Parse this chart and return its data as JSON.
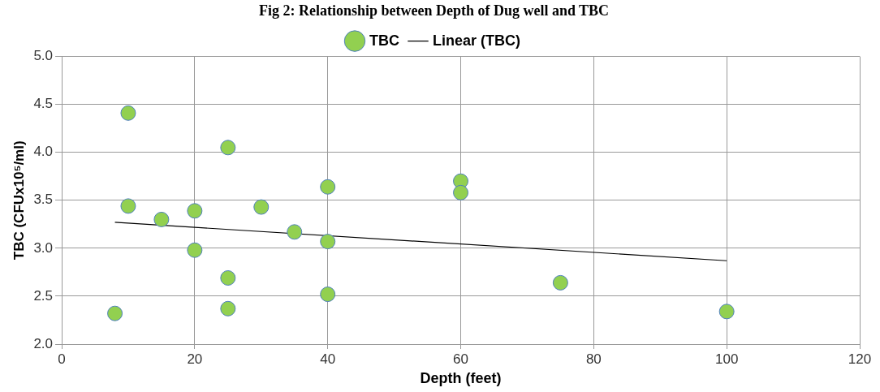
{
  "chart_data": {
    "type": "scatter",
    "title": "Fig 2: Relationship between Depth of Dug well and TBC",
    "xlabel": "Depth (feet)",
    "ylabel": "TBC (CFUx10⁵/ml)",
    "series": [
      {
        "name": "TBC",
        "color": "#92d050",
        "marker": "circle",
        "x": [
          8,
          10,
          10,
          15,
          20,
          20,
          25,
          25,
          25,
          30,
          35,
          40,
          40,
          40,
          60,
          60,
          75,
          100
        ],
        "values": [
          2.32,
          4.41,
          3.44,
          3.3,
          3.39,
          2.98,
          4.05,
          2.69,
          2.37,
          3.43,
          3.17,
          3.64,
          3.07,
          2.52,
          3.7,
          3.58,
          2.64,
          2.34
        ]
      },
      {
        "type": "line",
        "name": "Linear (TBC)",
        "color": "#000000",
        "marker": "none",
        "x": [
          8,
          100
        ],
        "values": [
          3.27,
          2.87
        ]
      }
    ],
    "xlim": [
      0,
      120
    ],
    "xticks": [
      0,
      20,
      40,
      60,
      80,
      100,
      120
    ],
    "ylim": [
      2,
      5
    ],
    "yticks": [
      {
        "value": 2,
        "label": "2.0"
      },
      {
        "value": 2.5,
        "label": "2.5"
      },
      {
        "value": 3,
        "label": "3.0"
      },
      {
        "value": 3.5,
        "label": "3.5"
      },
      {
        "value": 4,
        "label": "4.0"
      },
      {
        "value": 4.5,
        "label": "4.5"
      },
      {
        "value": 5,
        "label": "5.0"
      }
    ],
    "grid": true,
    "legend": "top"
  }
}
